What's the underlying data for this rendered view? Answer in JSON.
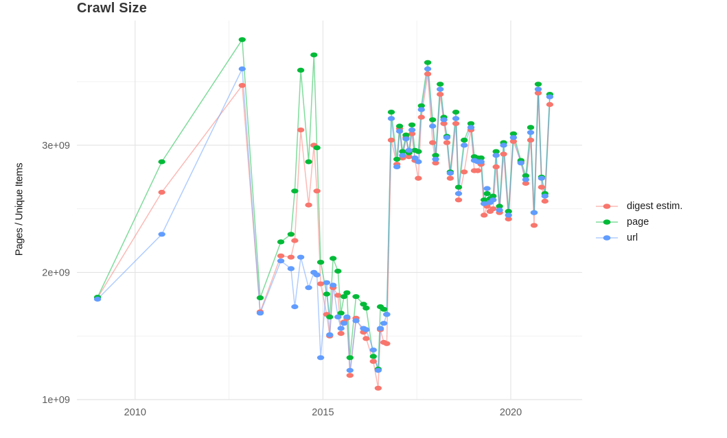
{
  "title": "Crawl Size",
  "y_axis_title": "Pages / Unique Items",
  "legend": {
    "items": [
      {
        "key": "digest",
        "label": "digest estim."
      },
      {
        "key": "page",
        "label": "page"
      },
      {
        "key": "url",
        "label": "url"
      }
    ]
  },
  "colors": {
    "digest": "#F8766D",
    "page": "#00BA38",
    "url": "#619CFF",
    "grid_major": "#e3e3e3",
    "grid_minor": "#f1f1f1",
    "baseline": "#dcdcdc",
    "tick_text": "#5c5c5c",
    "title_text": "#363636"
  },
  "chart_data": {
    "type": "line",
    "title": "Crawl Size",
    "xlabel": "",
    "ylabel": "Pages / Unique Items",
    "y_unit": "items (value 1.0 = 1e+09)",
    "grid": true,
    "legend_position": "right",
    "x_range": [
      2008.45,
      2021.9
    ],
    "y_range": [
      1.0,
      3.98
    ],
    "x_ticks": [
      {
        "value": 2010,
        "label": "2010"
      },
      {
        "value": 2015,
        "label": "2015"
      },
      {
        "value": 2020,
        "label": "2020"
      }
    ],
    "x_minor": [
      2012.5,
      2017.5
    ],
    "y_ticks": [
      {
        "value": 1.0,
        "label": "1e+09"
      },
      {
        "value": 2.0,
        "label": "2e+09"
      },
      {
        "value": 3.0,
        "label": "3e+09"
      }
    ],
    "y_minor": [
      1.5,
      2.5,
      3.5
    ],
    "series": [
      {
        "key": "digest",
        "name": "digest estim.",
        "points": [
          [
            2009.0,
            1.8
          ],
          [
            2010.71,
            2.63
          ],
          [
            2012.85,
            3.47
          ],
          [
            2013.33,
            1.69
          ],
          [
            2013.88,
            2.13
          ],
          [
            2014.15,
            2.12
          ],
          [
            2014.25,
            2.25
          ],
          [
            2014.41,
            3.12
          ],
          [
            2014.62,
            2.53
          ],
          [
            2014.76,
            3.0
          ],
          [
            2014.84,
            2.64
          ],
          [
            2014.94,
            1.91
          ],
          [
            2015.1,
            1.67
          ],
          [
            2015.18,
            1.5
          ],
          [
            2015.27,
            1.88
          ],
          [
            2015.4,
            1.82
          ],
          [
            2015.48,
            1.52
          ],
          [
            2015.56,
            1.61
          ],
          [
            2015.64,
            1.64
          ],
          [
            2015.72,
            1.19
          ],
          [
            2015.88,
            1.64
          ],
          [
            2016.08,
            1.53
          ],
          [
            2016.15,
            1.48
          ],
          [
            2016.34,
            1.3
          ],
          [
            2016.47,
            1.09
          ],
          [
            2016.53,
            1.55
          ],
          [
            2016.62,
            1.45
          ],
          [
            2016.7,
            1.44
          ],
          [
            2016.82,
            3.04
          ],
          [
            2016.97,
            2.85
          ],
          [
            2017.04,
            3.13
          ],
          [
            2017.12,
            2.9
          ],
          [
            2017.21,
            3.06
          ],
          [
            2017.29,
            2.91
          ],
          [
            2017.37,
            3.09
          ],
          [
            2017.45,
            2.88
          ],
          [
            2017.54,
            2.74
          ],
          [
            2017.62,
            3.22
          ],
          [
            2017.79,
            3.56
          ],
          [
            2017.92,
            3.02
          ],
          [
            2018.0,
            2.86
          ],
          [
            2018.12,
            3.4
          ],
          [
            2018.22,
            3.17
          ],
          [
            2018.3,
            3.02
          ],
          [
            2018.39,
            2.74
          ],
          [
            2018.54,
            3.17
          ],
          [
            2018.61,
            2.57
          ],
          [
            2018.76,
            2.79
          ],
          [
            2018.94,
            3.12
          ],
          [
            2019.03,
            2.8
          ],
          [
            2019.12,
            2.8
          ],
          [
            2019.21,
            2.85
          ],
          [
            2019.29,
            2.45
          ],
          [
            2019.37,
            2.52
          ],
          [
            2019.45,
            2.48
          ],
          [
            2019.53,
            2.5
          ],
          [
            2019.61,
            2.83
          ],
          [
            2019.7,
            2.47
          ],
          [
            2019.81,
            2.93
          ],
          [
            2019.94,
            2.42
          ],
          [
            2020.07,
            3.03
          ],
          [
            2020.27,
            2.87
          ],
          [
            2020.4,
            2.7
          ],
          [
            2020.53,
            3.04
          ],
          [
            2020.62,
            2.37
          ],
          [
            2020.73,
            3.41
          ],
          [
            2020.82,
            2.67
          ],
          [
            2020.91,
            2.56
          ],
          [
            2021.04,
            3.32
          ]
        ]
      },
      {
        "key": "page",
        "name": "page",
        "points": [
          [
            2009.0,
            1.805
          ],
          [
            2010.71,
            2.87
          ],
          [
            2012.85,
            3.83
          ],
          [
            2013.33,
            1.8
          ],
          [
            2013.88,
            2.24
          ],
          [
            2014.15,
            2.3
          ],
          [
            2014.25,
            2.64
          ],
          [
            2014.41,
            3.59
          ],
          [
            2014.62,
            2.87
          ],
          [
            2014.76,
            3.71
          ],
          [
            2014.84,
            2.98
          ],
          [
            2014.94,
            2.08
          ],
          [
            2015.1,
            1.83
          ],
          [
            2015.18,
            1.65
          ],
          [
            2015.27,
            2.11
          ],
          [
            2015.4,
            2.01
          ],
          [
            2015.48,
            1.68
          ],
          [
            2015.56,
            1.81
          ],
          [
            2015.64,
            1.84
          ],
          [
            2015.72,
            1.33
          ],
          [
            2015.88,
            1.81
          ],
          [
            2016.08,
            1.75
          ],
          [
            2016.15,
            1.72
          ],
          [
            2016.34,
            1.34
          ],
          [
            2016.47,
            1.24
          ],
          [
            2016.53,
            1.73
          ],
          [
            2016.62,
            1.71
          ],
          [
            2016.7,
            1.67
          ],
          [
            2016.82,
            3.26
          ],
          [
            2016.97,
            2.89
          ],
          [
            2017.04,
            3.15
          ],
          [
            2017.12,
            2.95
          ],
          [
            2017.21,
            3.08
          ],
          [
            2017.29,
            2.94
          ],
          [
            2017.37,
            3.16
          ],
          [
            2017.45,
            2.96
          ],
          [
            2017.54,
            2.95
          ],
          [
            2017.62,
            3.31
          ],
          [
            2017.79,
            3.65
          ],
          [
            2017.92,
            3.2
          ],
          [
            2018.0,
            2.92
          ],
          [
            2018.12,
            3.48
          ],
          [
            2018.22,
            3.22
          ],
          [
            2018.3,
            3.07
          ],
          [
            2018.39,
            2.79
          ],
          [
            2018.54,
            3.26
          ],
          [
            2018.61,
            2.67
          ],
          [
            2018.76,
            3.04
          ],
          [
            2018.94,
            3.17
          ],
          [
            2019.03,
            2.91
          ],
          [
            2019.12,
            2.9
          ],
          [
            2019.21,
            2.9
          ],
          [
            2019.29,
            2.57
          ],
          [
            2019.37,
            2.62
          ],
          [
            2019.45,
            2.58
          ],
          [
            2019.53,
            2.6
          ],
          [
            2019.61,
            2.95
          ],
          [
            2019.7,
            2.52
          ],
          [
            2019.81,
            3.02
          ],
          [
            2019.94,
            2.48
          ],
          [
            2020.07,
            3.09
          ],
          [
            2020.27,
            2.88
          ],
          [
            2020.4,
            2.76
          ],
          [
            2020.53,
            3.14
          ],
          [
            2020.62,
            2.47
          ],
          [
            2020.73,
            3.48
          ],
          [
            2020.82,
            2.75
          ],
          [
            2020.91,
            2.62
          ],
          [
            2021.04,
            3.4
          ]
        ]
      },
      {
        "key": "url",
        "name": "url",
        "points": [
          [
            2009.0,
            1.79
          ],
          [
            2010.71,
            2.3
          ],
          [
            2012.85,
            3.6
          ],
          [
            2013.33,
            1.68
          ],
          [
            2013.88,
            2.09
          ],
          [
            2014.15,
            2.03
          ],
          [
            2014.25,
            1.73
          ],
          [
            2014.41,
            2.12
          ],
          [
            2014.62,
            1.88
          ],
          [
            2014.76,
            2.0
          ],
          [
            2014.84,
            1.98
          ],
          [
            2014.94,
            1.33
          ],
          [
            2015.1,
            1.92
          ],
          [
            2015.18,
            1.51
          ],
          [
            2015.27,
            1.9
          ],
          [
            2015.4,
            1.65
          ],
          [
            2015.48,
            1.56
          ],
          [
            2015.56,
            1.6
          ],
          [
            2015.64,
            1.65
          ],
          [
            2015.72,
            1.23
          ],
          [
            2015.88,
            1.62
          ],
          [
            2016.08,
            1.56
          ],
          [
            2016.15,
            1.55
          ],
          [
            2016.34,
            1.39
          ],
          [
            2016.47,
            1.23
          ],
          [
            2016.53,
            1.56
          ],
          [
            2016.62,
            1.6
          ],
          [
            2016.7,
            1.67
          ],
          [
            2016.82,
            3.21
          ],
          [
            2016.97,
            2.83
          ],
          [
            2017.04,
            3.11
          ],
          [
            2017.12,
            2.92
          ],
          [
            2017.21,
            3.05
          ],
          [
            2017.29,
            2.96
          ],
          [
            2017.37,
            3.12
          ],
          [
            2017.45,
            2.9
          ],
          [
            2017.54,
            2.87
          ],
          [
            2017.62,
            3.28
          ],
          [
            2017.79,
            3.6
          ],
          [
            2017.92,
            3.15
          ],
          [
            2018.0,
            2.89
          ],
          [
            2018.12,
            3.44
          ],
          [
            2018.22,
            3.2
          ],
          [
            2018.3,
            3.06
          ],
          [
            2018.39,
            2.78
          ],
          [
            2018.54,
            3.21
          ],
          [
            2018.61,
            2.62
          ],
          [
            2018.76,
            3.0
          ],
          [
            2018.94,
            3.14
          ],
          [
            2019.03,
            2.88
          ],
          [
            2019.12,
            2.87
          ],
          [
            2019.21,
            2.87
          ],
          [
            2019.29,
            2.54
          ],
          [
            2019.37,
            2.66
          ],
          [
            2019.45,
            2.55
          ],
          [
            2019.53,
            2.57
          ],
          [
            2019.61,
            2.92
          ],
          [
            2019.7,
            2.49
          ],
          [
            2019.81,
            3.0
          ],
          [
            2019.94,
            2.45
          ],
          [
            2020.07,
            3.06
          ],
          [
            2020.27,
            2.86
          ],
          [
            2020.4,
            2.73
          ],
          [
            2020.53,
            3.1
          ],
          [
            2020.62,
            2.47
          ],
          [
            2020.73,
            3.44
          ],
          [
            2020.82,
            2.74
          ],
          [
            2020.91,
            2.6
          ],
          [
            2021.04,
            3.38
          ]
        ]
      }
    ]
  }
}
